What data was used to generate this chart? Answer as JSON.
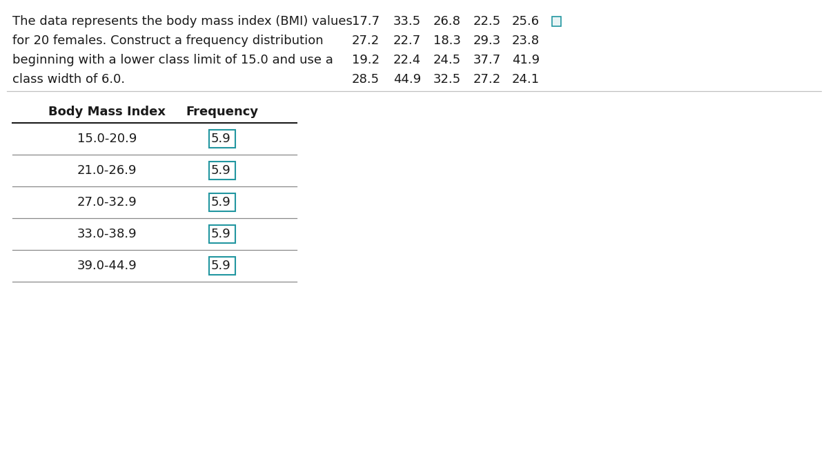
{
  "desc_lines": [
    "The data represents the body mass index (BMI) values",
    "for 20 females. Construct a frequency distribution",
    "beginning with a lower class limit of 15.0 and use a",
    "class width of 6.0."
  ],
  "data_rows": [
    [
      "17.7",
      "33.5",
      "26.8",
      "22.5",
      "25.6"
    ],
    [
      "27.2",
      "22.7",
      "18.3",
      "29.3",
      "23.8"
    ],
    [
      "19.2",
      "22.4",
      "24.5",
      "37.7",
      "41.9"
    ],
    [
      "28.5",
      "44.9",
      "32.5",
      "27.2",
      "24.1"
    ]
  ],
  "table_header": [
    "Body Mass Index",
    "Frequency"
  ],
  "table_rows": [
    [
      "15.0-20.9",
      "5.9"
    ],
    [
      "21.0-26.9",
      "5.9"
    ],
    [
      "27.0-32.9",
      "5.9"
    ],
    [
      "33.0-38.9",
      "5.9"
    ],
    [
      "39.0-44.9",
      "5.9"
    ]
  ],
  "bg_color": "#ffffff",
  "text_color": "#1a1a1a",
  "table_line_color": "#888888",
  "freq_box_color": "#2196a0",
  "desc_fontsize": 13.0,
  "data_fontsize": 13.0,
  "header_fontsize": 13.0,
  "row_fontsize": 13.0
}
